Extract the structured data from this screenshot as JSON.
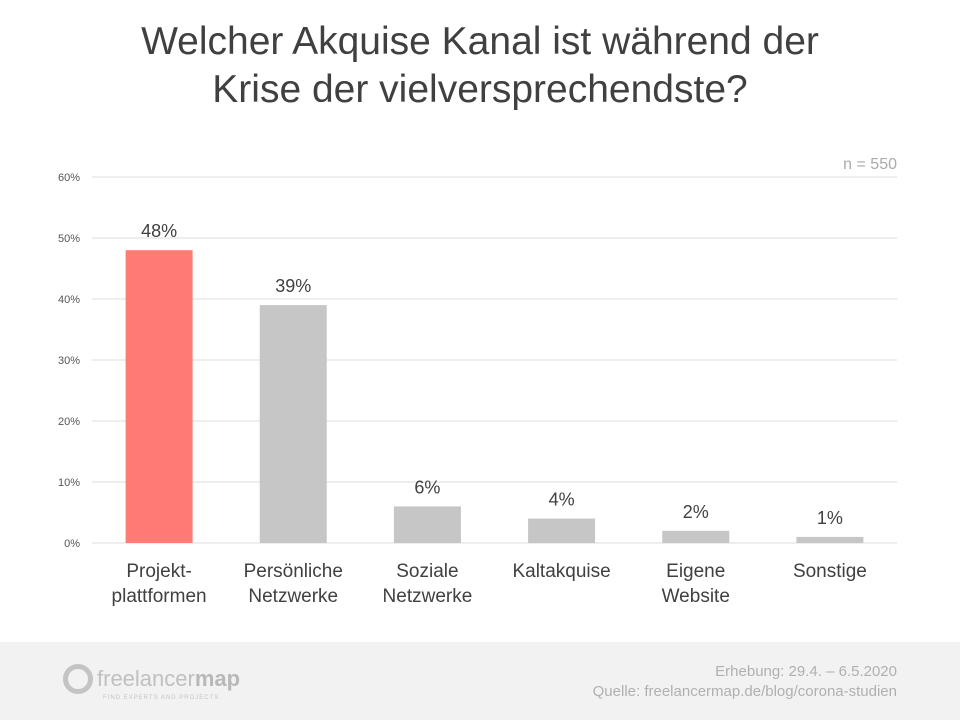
{
  "chart_data": {
    "type": "bar",
    "title": "Welcher Akquise Kanal ist während der Krise der vielversprechendste?",
    "title_lines": [
      "Welcher Akquise Kanal ist während der",
      "Krise der vielversprechendste?"
    ],
    "categories": [
      [
        "Projekt-",
        "plattformen"
      ],
      [
        "Persönliche",
        "Netzwerke"
      ],
      [
        "Soziale",
        "Netzwerke"
      ],
      [
        "Kaltakquise"
      ],
      [
        "Eigene",
        "Website"
      ],
      [
        "Sonstige"
      ]
    ],
    "values": [
      48,
      39,
      6,
      4,
      2,
      1
    ],
    "data_labels": [
      "48%",
      "39%",
      "6%",
      "4%",
      "2%",
      "1%"
    ],
    "yticks": [
      0,
      10,
      20,
      30,
      40,
      50,
      60
    ],
    "ytick_labels": [
      "0%",
      "10%",
      "20%",
      "30%",
      "40%",
      "50%",
      "60%"
    ],
    "ylim": [
      0,
      60
    ],
    "xlabel": "",
    "ylabel": "",
    "grid": true,
    "annotation": "n = 550",
    "colors": {
      "highlight": "#ff7b73",
      "bar": "#c6c6c6",
      "grid": "#dddddd",
      "text": "#404040"
    }
  },
  "footer": {
    "logo_text_light": "freelancer",
    "logo_text_bold": "map",
    "logo_tagline": "FIND EXPERTS AND PROJECTS",
    "survey_period": "Erhebung: 29.4. – 6.5.2020",
    "source": "Quelle: freelancermap.de/blog/corona-studien"
  }
}
